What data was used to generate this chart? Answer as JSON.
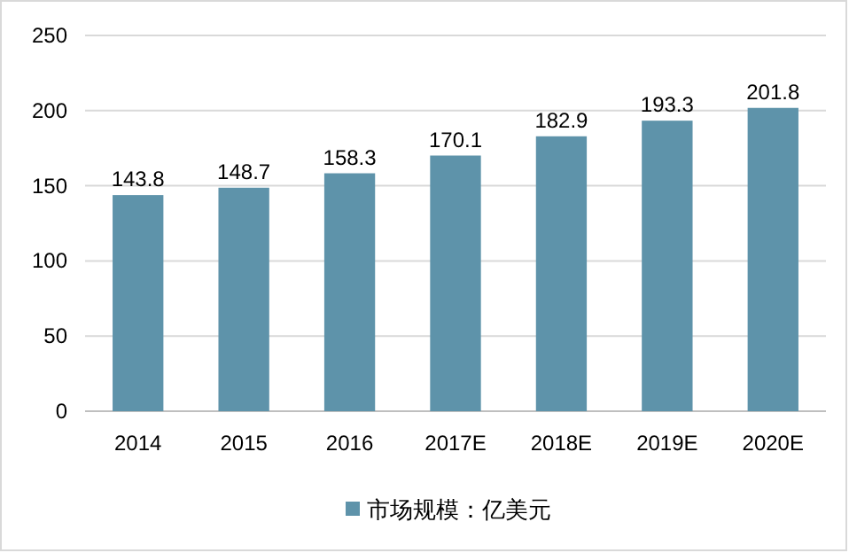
{
  "chart_data": {
    "type": "bar",
    "categories": [
      "2014",
      "2015",
      "2016",
      "2017E",
      "2018E",
      "2019E",
      "2020E"
    ],
    "series": [
      {
        "name": "市场规模：亿美元",
        "color": "#5e93aa",
        "values": [
          143.8,
          148.7,
          158.3,
          170.1,
          182.9,
          193.3,
          201.8
        ]
      }
    ],
    "ylim": [
      0,
      250
    ],
    "yticks": [
      0,
      50,
      100,
      150,
      200,
      250
    ],
    "grid": "y",
    "legend": "bottom",
    "data_labels": true
  }
}
